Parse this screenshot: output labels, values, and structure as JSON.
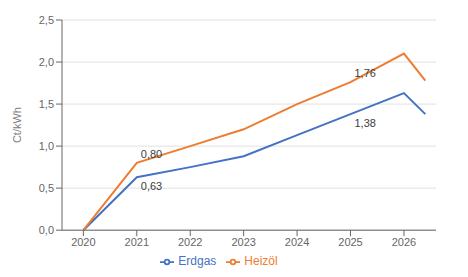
{
  "chart_data": {
    "type": "line",
    "ylabel": "Ct/kWh",
    "x": [
      2020,
      2021,
      2022,
      2023,
      2024,
      2025,
      2026,
      2026.4
    ],
    "series": [
      {
        "name": "Erdgas",
        "color": "#4472C4",
        "values": [
          0.0,
          0.63,
          0.75,
          0.88,
          1.13,
          1.38,
          1.63,
          1.38
        ]
      },
      {
        "name": "Heizöl",
        "color": "#ED7D31",
        "values": [
          0.0,
          0.8,
          1.0,
          1.2,
          1.5,
          1.76,
          2.1,
          1.78
        ]
      }
    ],
    "xlim": [
      2019.6,
      2026.6
    ],
    "xticks": [
      2020,
      2021,
      2022,
      2023,
      2024,
      2025,
      2026
    ],
    "ylim": [
      0.0,
      2.5
    ],
    "yticks": [
      {
        "value": 0.0,
        "label": "0,0"
      },
      {
        "value": 0.5,
        "label": "0,5"
      },
      {
        "value": 1.0,
        "label": "1,0"
      },
      {
        "value": 1.5,
        "label": "1,5"
      },
      {
        "value": 2.0,
        "label": "2,0"
      },
      {
        "value": 2.5,
        "label": "2,5"
      }
    ],
    "annotations": [
      {
        "text": "0,80",
        "x": 2021,
        "y": 0.8
      },
      {
        "text": "0,63",
        "x": 2021,
        "y": 0.63
      },
      {
        "text": "1,76",
        "x": 2025,
        "y": 1.76
      },
      {
        "text": "1,38",
        "x": 2025,
        "y": 1.38
      }
    ],
    "grid": true,
    "legend": "bottom"
  }
}
